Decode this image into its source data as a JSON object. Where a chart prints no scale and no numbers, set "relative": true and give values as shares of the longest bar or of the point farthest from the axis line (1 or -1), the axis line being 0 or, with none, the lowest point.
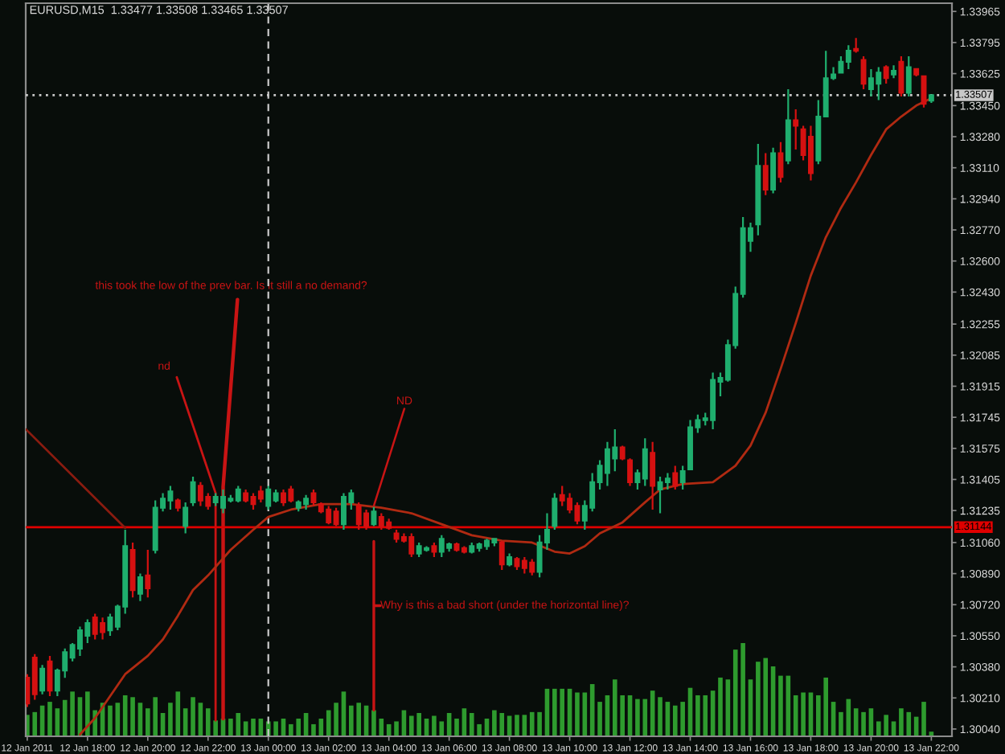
{
  "chart_data": [
    {
      "type": "candlestick",
      "title": "EURUSD,M15  1.33477 1.33508 1.33465 1.33507",
      "x": [
        "2011-01-12T16:00",
        "2011-01-12T16:15",
        "2011-01-12T16:30",
        "2011-01-12T16:45",
        "2011-01-12T17:00",
        "2011-01-12T17:15",
        "2011-01-12T17:30",
        "2011-01-12T17:45",
        "2011-01-12T18:00",
        "2011-01-12T18:15",
        "2011-01-12T18:30",
        "2011-01-12T18:45",
        "2011-01-12T19:00",
        "2011-01-12T19:15",
        "2011-01-12T19:30",
        "2011-01-12T19:45",
        "2011-01-12T20:00",
        "2011-01-12T20:15",
        "2011-01-12T20:30",
        "2011-01-12T20:45",
        "2011-01-12T21:00",
        "2011-01-12T21:15",
        "2011-01-12T21:30",
        "2011-01-12T21:45",
        "2011-01-12T22:00",
        "2011-01-12T22:15",
        "2011-01-12T22:30",
        "2011-01-12T22:45",
        "2011-01-12T23:00",
        "2011-01-12T23:15",
        "2011-01-12T23:30",
        "2011-01-12T23:45",
        "2011-01-13T00:00",
        "2011-01-13T00:15",
        "2011-01-13T00:30",
        "2011-01-13T00:45",
        "2011-01-13T01:00",
        "2011-01-13T01:15",
        "2011-01-13T01:30",
        "2011-01-13T01:45",
        "2011-01-13T02:00",
        "2011-01-13T02:15",
        "2011-01-13T02:30",
        "2011-01-13T02:45",
        "2011-01-13T03:00",
        "2011-01-13T03:15",
        "2011-01-13T03:30",
        "2011-01-13T03:45",
        "2011-01-13T04:00",
        "2011-01-13T04:15",
        "2011-01-13T04:30",
        "2011-01-13T04:45",
        "2011-01-13T05:00",
        "2011-01-13T05:15",
        "2011-01-13T05:30",
        "2011-01-13T05:45",
        "2011-01-13T06:00",
        "2011-01-13T06:15",
        "2011-01-13T06:30",
        "2011-01-13T06:45",
        "2011-01-13T07:00",
        "2011-01-13T07:15",
        "2011-01-13T07:30",
        "2011-01-13T07:45",
        "2011-01-13T08:00",
        "2011-01-13T08:15",
        "2011-01-13T08:30",
        "2011-01-13T08:45",
        "2011-01-13T09:00",
        "2011-01-13T09:15",
        "2011-01-13T09:30",
        "2011-01-13T09:45",
        "2011-01-13T10:00",
        "2011-01-13T10:15",
        "2011-01-13T10:30",
        "2011-01-13T10:45",
        "2011-01-13T11:00",
        "2011-01-13T11:15",
        "2011-01-13T11:30",
        "2011-01-13T11:45",
        "2011-01-13T12:00",
        "2011-01-13T12:15",
        "2011-01-13T12:30",
        "2011-01-13T12:45",
        "2011-01-13T13:00",
        "2011-01-13T13:15",
        "2011-01-13T13:30",
        "2011-01-13T13:45",
        "2011-01-13T14:00",
        "2011-01-13T14:15",
        "2011-01-13T14:30",
        "2011-01-13T14:45",
        "2011-01-13T15:00",
        "2011-01-13T15:15",
        "2011-01-13T15:30",
        "2011-01-13T15:45",
        "2011-01-13T16:00",
        "2011-01-13T16:15",
        "2011-01-13T16:30",
        "2011-01-13T16:45",
        "2011-01-13T17:00",
        "2011-01-13T17:15",
        "2011-01-13T17:30",
        "2011-01-13T17:45",
        "2011-01-13T18:00",
        "2011-01-13T18:15",
        "2011-01-13T18:30",
        "2011-01-13T18:45",
        "2011-01-13T19:00",
        "2011-01-13T19:15",
        "2011-01-13T19:30",
        "2011-01-13T19:45",
        "2011-01-13T20:00",
        "2011-01-13T20:15",
        "2011-01-13T20:30",
        "2011-01-13T20:45",
        "2011-01-13T21:00",
        "2011-01-13T21:15",
        "2011-01-13T21:30",
        "2011-01-13T21:45",
        "2011-01-13T22:00"
      ],
      "ohlc": [
        [
          1.3032,
          1.3034,
          1.3016,
          1.3018
        ],
        [
          1.3043,
          1.3045,
          1.302,
          1.3023
        ],
        [
          1.3025,
          1.3039,
          1.3023,
          1.3037
        ],
        [
          1.3041,
          1.3044,
          1.3022,
          1.3025
        ],
        [
          1.3025,
          1.3037,
          1.3022,
          1.3036
        ],
        [
          1.3036,
          1.3048,
          1.3032,
          1.3046
        ],
        [
          1.3043,
          1.3051,
          1.3041,
          1.305
        ],
        [
          1.3048,
          1.306,
          1.3044,
          1.3058
        ],
        [
          1.3055,
          1.3064,
          1.3051,
          1.3062
        ],
        [
          1.3065,
          1.3067,
          1.3053,
          1.3056
        ],
        [
          1.3062,
          1.3065,
          1.3053,
          1.3057
        ],
        [
          1.3058,
          1.3067,
          1.3055,
          1.3065
        ],
        [
          1.306,
          1.3072,
          1.3058,
          1.3071
        ],
        [
          1.3071,
          1.3113,
          1.3067,
          1.3104
        ],
        [
          1.3102,
          1.3106,
          1.3076,
          1.308
        ],
        [
          1.3078,
          1.3089,
          1.3074,
          1.3087
        ],
        [
          1.3088,
          1.3102,
          1.3076,
          1.3081
        ],
        [
          1.3102,
          1.3129,
          1.31,
          1.3125
        ],
        [
          1.3125,
          1.3133,
          1.3123,
          1.313
        ],
        [
          1.3129,
          1.3137,
          1.3124,
          1.3134
        ],
        [
          1.3129,
          1.313,
          1.3123,
          1.3125
        ],
        [
          1.3115,
          1.3128,
          1.3111,
          1.3125
        ],
        [
          1.3128,
          1.3142,
          1.3126,
          1.3139
        ],
        [
          1.3137,
          1.3139,
          1.3126,
          1.3129
        ],
        [
          1.3131,
          1.3133,
          1.3124,
          1.3126
        ],
        [
          1.3128,
          1.3133,
          1.3126,
          1.3131
        ],
        [
          1.3125,
          1.3135,
          1.3122,
          1.3131
        ],
        [
          1.3129,
          1.3132,
          1.3128,
          1.313
        ],
        [
          1.3129,
          1.3137,
          1.3128,
          1.3135
        ],
        [
          1.3133,
          1.3135,
          1.3128,
          1.3129
        ],
        [
          1.3131,
          1.3133,
          1.3124,
          1.3127
        ],
        [
          1.3134,
          1.3137,
          1.3128,
          1.313
        ],
        [
          1.3126,
          1.3137,
          1.3124,
          1.3135
        ],
        [
          1.3129,
          1.3135,
          1.3128,
          1.3133
        ],
        [
          1.3133,
          1.3135,
          1.3126,
          1.3128
        ],
        [
          1.3135,
          1.3137,
          1.3128,
          1.3129
        ],
        [
          1.3125,
          1.3129,
          1.3123,
          1.3128
        ],
        [
          1.3127,
          1.3132,
          1.3124,
          1.313
        ],
        [
          1.3133,
          1.3135,
          1.3126,
          1.3128
        ],
        [
          1.3127,
          1.3128,
          1.3122,
          1.3123
        ],
        [
          1.3124,
          1.3126,
          1.3116,
          1.3117
        ],
        [
          1.3123,
          1.3125,
          1.3115,
          1.3116
        ],
        [
          1.3116,
          1.3133,
          1.3113,
          1.3131
        ],
        [
          1.3128,
          1.3135,
          1.3124,
          1.3133
        ],
        [
          1.3126,
          1.3128,
          1.3113,
          1.3116
        ],
        [
          1.3122,
          1.3124,
          1.3113,
          1.3115
        ],
        [
          1.3116,
          1.3126,
          1.3115,
          1.3123
        ],
        [
          1.312,
          1.3122,
          1.3113,
          1.3115
        ],
        [
          1.3117,
          1.3119,
          1.3113,
          1.3114
        ],
        [
          1.3111,
          1.3113,
          1.3106,
          1.3108
        ],
        [
          1.3109,
          1.3111,
          1.3106,
          1.3107
        ],
        [
          1.3109,
          1.3111,
          1.3098,
          1.31
        ],
        [
          1.31,
          1.3106,
          1.3098,
          1.3104
        ],
        [
          1.3102,
          1.3104,
          1.3101,
          1.3103
        ],
        [
          1.3104,
          1.3106,
          1.3098,
          1.3101
        ],
        [
          1.3101,
          1.311,
          1.3098,
          1.3108
        ],
        [
          1.3103,
          1.3106,
          1.3101,
          1.3105
        ],
        [
          1.3105,
          1.3106,
          1.3101,
          1.3102
        ],
        [
          1.3103,
          1.3104,
          1.31,
          1.3101
        ],
        [
          1.3101,
          1.3106,
          1.31,
          1.3104
        ],
        [
          1.3103,
          1.3106,
          1.3101,
          1.3105
        ],
        [
          1.3104,
          1.3108,
          1.3102,
          1.3107
        ],
        [
          1.3106,
          1.3108,
          1.3104,
          1.3108
        ],
        [
          1.3106,
          1.3107,
          1.3091,
          1.3094
        ],
        [
          1.3094,
          1.31,
          1.3093,
          1.3098
        ],
        [
          1.3097,
          1.3098,
          1.3091,
          1.3093
        ],
        [
          1.3096,
          1.3098,
          1.3089,
          1.3092
        ],
        [
          1.3095,
          1.3097,
          1.3088,
          1.309
        ],
        [
          1.309,
          1.311,
          1.3087,
          1.3106
        ],
        [
          1.3106,
          1.3122,
          1.3102,
          1.3113
        ],
        [
          1.3115,
          1.3133,
          1.3113,
          1.313
        ],
        [
          1.3132,
          1.3137,
          1.3126,
          1.3129
        ],
        [
          1.313,
          1.3133,
          1.3122,
          1.3124
        ],
        [
          1.3126,
          1.3128,
          1.3116,
          1.3118
        ],
        [
          1.3118,
          1.3129,
          1.3113,
          1.3126
        ],
        [
          1.3125,
          1.3144,
          1.3123,
          1.3139
        ],
        [
          1.3139,
          1.3151,
          1.3135,
          1.3148
        ],
        [
          1.3144,
          1.3161,
          1.3137,
          1.3157
        ],
        [
          1.3152,
          1.3168,
          1.3145,
          1.3158
        ],
        [
          1.3158,
          1.3159,
          1.3151,
          1.3152
        ],
        [
          1.3151,
          1.3152,
          1.3137,
          1.3139
        ],
        [
          1.3139,
          1.3146,
          1.3135,
          1.3144
        ],
        [
          1.3141,
          1.3163,
          1.3137,
          1.3157
        ],
        [
          1.3155,
          1.3161,
          1.3124,
          1.3137
        ],
        [
          1.3135,
          1.3142,
          1.3122,
          1.3139
        ],
        [
          1.3139,
          1.3144,
          1.3135,
          1.3141
        ],
        [
          1.3144,
          1.3148,
          1.3135,
          1.3137
        ],
        [
          1.3139,
          1.3148,
          1.3135,
          1.3145
        ],
        [
          1.3146,
          1.3173,
          1.3146,
          1.3169
        ],
        [
          1.3169,
          1.3176,
          1.3166,
          1.3173
        ],
        [
          1.3173,
          1.3177,
          1.317,
          1.3174
        ],
        [
          1.3173,
          1.3199,
          1.3168,
          1.3195
        ],
        [
          1.3194,
          1.3199,
          1.3186,
          1.3196
        ],
        [
          1.3195,
          1.3217,
          1.3194,
          1.3214
        ],
        [
          1.3214,
          1.3246,
          1.3212,
          1.3242
        ],
        [
          1.3242,
          1.3284,
          1.324,
          1.3278
        ],
        [
          1.3271,
          1.3281,
          1.3265,
          1.3278
        ],
        [
          1.328,
          1.3324,
          1.3274,
          1.3312
        ],
        [
          1.3312,
          1.3319,
          1.3296,
          1.3299
        ],
        [
          1.3299,
          1.3322,
          1.3297,
          1.3319
        ],
        [
          1.3319,
          1.3325,
          1.3303,
          1.3306
        ],
        [
          1.3315,
          1.3354,
          1.3313,
          1.3337
        ],
        [
          1.3337,
          1.3343,
          1.3321,
          1.3334
        ],
        [
          1.3332,
          1.3334,
          1.3315,
          1.3318
        ],
        [
          1.3328,
          1.3334,
          1.3304,
          1.3308
        ],
        [
          1.3315,
          1.3348,
          1.3313,
          1.3339
        ],
        [
          1.3339,
          1.3375,
          1.3339,
          1.336
        ],
        [
          1.336,
          1.3366,
          1.3359,
          1.3362
        ],
        [
          1.3363,
          1.3372,
          1.3363,
          1.3369
        ],
        [
          1.3369,
          1.3378,
          1.3365,
          1.3375
        ],
        [
          1.3376,
          1.3382,
          1.3374,
          1.3375
        ],
        [
          1.337,
          1.3372,
          1.3354,
          1.3357
        ],
        [
          1.3354,
          1.3365,
          1.335,
          1.336
        ],
        [
          1.3357,
          1.3366,
          1.3348,
          1.3363
        ],
        [
          1.3366,
          1.3367,
          1.3357,
          1.336
        ],
        [
          1.3362,
          1.3367,
          1.336,
          1.3364
        ],
        [
          1.3369,
          1.3372,
          1.335,
          1.3352
        ],
        [
          1.3352,
          1.3372,
          1.335,
          1.3366
        ],
        [
          1.3365,
          1.3365,
          1.3361,
          1.3362
        ],
        [
          1.3361,
          1.3361,
          1.3344,
          1.3346
        ],
        [
          1.33477,
          1.33508,
          1.33465,
          1.33507
        ]
      ],
      "colors": [
        "#d51111",
        "#d51111",
        "#1fae6e",
        "#d51111",
        "#1fae6e",
        "#1fae6e",
        "#1fae6e",
        "#1fae6e",
        "#1fae6e",
        "#d51111",
        "#d51111",
        "#1fae6e",
        "#1fae6e",
        "#1fae6e",
        "#d51111",
        "#1fae6e",
        "#d51111",
        "#1fae6e",
        "#1fae6e",
        "#1fae6e",
        "#d51111",
        "#1fae6e",
        "#1fae6e",
        "#d51111",
        "#d51111",
        "#1fae6e",
        "#1fae6e",
        "#1fae6e",
        "#1fae6e",
        "#d51111",
        "#d51111",
        "#d51111",
        "#1fae6e",
        "#1fae6e",
        "#d51111",
        "#d51111",
        "#1fae6e",
        "#1fae6e",
        "#d51111",
        "#d51111",
        "#d51111",
        "#d51111",
        "#1fae6e",
        "#1fae6e",
        "#d51111",
        "#d51111",
        "#1fae6e",
        "#d51111",
        "#d51111",
        "#d51111",
        "#d51111",
        "#d51111",
        "#1fae6e",
        "#1fae6e",
        "#d51111",
        "#1fae6e",
        "#1fae6e",
        "#d51111",
        "#d51111",
        "#1fae6e",
        "#1fae6e",
        "#1fae6e",
        "#1fae6e",
        "#d51111",
        "#1fae6e",
        "#d51111",
        "#d51111",
        "#d51111",
        "#1fae6e",
        "#1fae6e",
        "#1fae6e",
        "#d51111",
        "#d51111",
        "#d51111",
        "#1fae6e",
        "#1fae6e",
        "#1fae6e",
        "#1fae6e",
        "#1fae6e",
        "#d51111",
        "#d51111",
        "#1fae6e",
        "#1fae6e",
        "#d51111",
        "#1fae6e",
        "#1fae6e",
        "#d51111",
        "#1fae6e",
        "#1fae6e",
        "#1fae6e",
        "#1fae6e",
        "#1fae6e",
        "#1fae6e",
        "#1fae6e",
        "#1fae6e",
        "#1fae6e",
        "#1fae6e",
        "#1fae6e",
        "#d51111",
        "#1fae6e",
        "#d51111",
        "#1fae6e",
        "#d51111",
        "#d51111",
        "#d51111",
        "#1fae6e",
        "#1fae6e",
        "#1fae6e",
        "#1fae6e",
        "#1fae6e",
        "#d51111",
        "#d51111",
        "#1fae6e",
        "#1fae6e",
        "#d51111",
        "#1fae6e",
        "#d51111",
        "#1fae6e",
        "#d51111",
        "#d51111",
        "#1fae6e"
      ],
      "series": [
        {
          "type": "line",
          "color": "#b02a12",
          "x": [
            "2011-01-12T17:45",
            "2011-01-12T18:15",
            "2011-01-12T19:15",
            "2011-01-12T20:00",
            "2011-01-12T20:30",
            "2011-01-12T21:00",
            "2011-01-12T21:30",
            "2011-01-12T22:00",
            "2011-01-12T22:45",
            "2011-01-12T23:30",
            "2011-01-13T00:00",
            "2011-01-13T00:45",
            "2011-01-13T01:45",
            "2011-01-13T02:45",
            "2011-01-13T03:45",
            "2011-01-13T04:45",
            "2011-01-13T05:45",
            "2011-01-13T06:45",
            "2011-01-13T07:45",
            "2011-01-13T08:45",
            "2011-01-13T09:30",
            "2011-01-13T10:00",
            "2011-01-13T10:30",
            "2011-01-13T11:00",
            "2011-01-13T11:45",
            "2011-01-13T12:30",
            "2011-01-13T13:00",
            "2011-01-13T13:45",
            "2011-01-13T14:45",
            "2011-01-13T15:30",
            "2011-01-13T16:00",
            "2011-01-13T16:30",
            "2011-01-13T17:00",
            "2011-01-13T17:30",
            "2011-01-13T18:00",
            "2011-01-13T18:30",
            "2011-01-13T19:00",
            "2011-01-13T19:30",
            "2011-01-13T20:00",
            "2011-01-13T20:30",
            "2011-01-13T21:00",
            "2011-01-13T21:30",
            "2011-01-13T22:00"
          ],
          "values": [
            1.3001,
            1.301,
            1.3034,
            1.3044,
            1.3053,
            1.3066,
            1.308,
            1.3088,
            1.3102,
            1.3113,
            1.312,
            1.3124,
            1.3127,
            1.3127,
            1.3125,
            1.3122,
            1.3116,
            1.311,
            1.3107,
            1.3106,
            1.3101,
            1.31,
            1.3104,
            1.3111,
            1.3117,
            1.3128,
            1.3135,
            1.3138,
            1.3139,
            1.3148,
            1.3159,
            1.3177,
            1.3201,
            1.3226,
            1.3252,
            1.3273,
            1.3289,
            1.3303,
            1.3318,
            1.3332,
            1.3339,
            1.3345,
            1.3349
          ]
        },
        {
          "type": "line",
          "color": "#8a1c10",
          "x": [
            "2011-01-12T15:57",
            "2011-01-12T19:15"
          ],
          "values": [
            1.3168,
            1.3114
          ]
        }
      ],
      "xlim": [
        "2011-01-12T15:57",
        "2011-01-13T22:41"
      ],
      "ylim": [
        1.3,
        1.3401
      ],
      "xticks": [
        {
          "value": "2011-01-12T16:00",
          "label": "12 Jan 2011"
        },
        {
          "value": "2011-01-12T18:00",
          "label": "12 Jan 18:00"
        },
        {
          "value": "2011-01-12T20:00",
          "label": "12 Jan 20:00"
        },
        {
          "value": "2011-01-12T22:00",
          "label": "12 Jan 22:00"
        },
        {
          "value": "2011-01-13T00:00",
          "label": "13 Jan 00:00"
        },
        {
          "value": "2011-01-13T02:00",
          "label": "13 Jan 02:00"
        },
        {
          "value": "2011-01-13T04:00",
          "label": "13 Jan 04:00"
        },
        {
          "value": "2011-01-13T06:00",
          "label": "13 Jan 06:00"
        },
        {
          "value": "2011-01-13T08:00",
          "label": "13 Jan 08:00"
        },
        {
          "value": "2011-01-13T10:00",
          "label": "13 Jan 10:00"
        },
        {
          "value": "2011-01-13T12:00",
          "label": "13 Jan 12:00"
        },
        {
          "value": "2011-01-13T14:00",
          "label": "13 Jan 14:00"
        },
        {
          "value": "2011-01-13T16:00",
          "label": "13 Jan 16:00"
        },
        {
          "value": "2011-01-13T18:00",
          "label": "13 Jan 18:00"
        },
        {
          "value": "2011-01-13T20:00",
          "label": "13 Jan 20:00"
        },
        {
          "value": "2011-01-13T22:00",
          "label": "13 Jan 22:00"
        }
      ],
      "yticks": [
        1.33965,
        1.33795,
        1.33625,
        {
          "value": 1.3345,
          "label": "1.33450"
        },
        {
          "value": 1.3328,
          "label": "1.33280"
        },
        {
          "value": 1.3311,
          "label": "1.33110"
        },
        {
          "value": 1.3294,
          "label": "1.32940"
        },
        {
          "value": 1.3277,
          "label": "1.32770"
        },
        {
          "value": 1.326,
          "label": "1.32600"
        },
        {
          "value": 1.3243,
          "label": "1.32430"
        },
        1.32255,
        1.32085,
        1.31915,
        1.31745,
        1.31575,
        1.31405,
        1.31235,
        {
          "value": 1.3106,
          "label": "1.31060"
        },
        {
          "value": 1.3089,
          "label": "1.30890"
        },
        {
          "value": 1.3072,
          "label": "1.30720"
        },
        {
          "value": 1.3055,
          "label": "1.30550"
        },
        {
          "value": 1.3038,
          "label": "1.30380"
        },
        {
          "value": 1.3021,
          "label": "1.30210"
        },
        {
          "value": 1.3004,
          "label": "1.30040"
        }
      ],
      "ref_lines": [
        {
          "axis": "y",
          "value": 1.31144,
          "label": "1.31144",
          "color": "#e00000",
          "line_style": "solid"
        },
        {
          "axis": "y",
          "value": 1.33507,
          "label": "1.33507",
          "color": "#c8c8c8",
          "line_style": "dotted"
        },
        {
          "axis": "x",
          "value": "2011-01-13T00:00",
          "color": "#c8c8c8",
          "line_style": "dashed"
        }
      ],
      "annotations": [
        {
          "text": "ND",
          "x": "2011-01-13T03:30",
          "y": 1.3126
        }
      ]
    },
    {
      "type": "bar",
      "relative": true,
      "color": "#2e9b2e",
      "xlim": [
        "2011-01-12T15:57",
        "2011-01-13T22:41"
      ],
      "x": [
        "2011-01-12T16:00",
        "2011-01-12T16:15",
        "2011-01-12T16:30",
        "2011-01-12T16:45",
        "2011-01-12T17:00",
        "2011-01-12T17:15",
        "2011-01-12T17:30",
        "2011-01-12T17:45",
        "2011-01-12T18:00",
        "2011-01-12T18:15",
        "2011-01-12T18:30",
        "2011-01-12T18:45",
        "2011-01-12T19:00",
        "2011-01-12T19:15",
        "2011-01-12T19:30",
        "2011-01-12T19:45",
        "2011-01-12T20:00",
        "2011-01-12T20:15",
        "2011-01-12T20:30",
        "2011-01-12T20:45",
        "2011-01-12T21:00",
        "2011-01-12T21:15",
        "2011-01-12T21:30",
        "2011-01-12T21:45",
        "2011-01-12T22:00",
        "2011-01-12T22:15",
        "2011-01-12T22:30",
        "2011-01-12T22:45",
        "2011-01-12T23:00",
        "2011-01-12T23:15",
        "2011-01-12T23:30",
        "2011-01-12T23:45",
        "2011-01-13T00:00",
        "2011-01-13T00:15",
        "2011-01-13T00:30",
        "2011-01-13T00:45",
        "2011-01-13T01:00",
        "2011-01-13T01:15",
        "2011-01-13T01:30",
        "2011-01-13T01:45",
        "2011-01-13T02:00",
        "2011-01-13T02:15",
        "2011-01-13T02:30",
        "2011-01-13T02:45",
        "2011-01-13T03:00",
        "2011-01-13T03:15",
        "2011-01-13T03:30",
        "2011-01-13T03:45",
        "2011-01-13T04:00",
        "2011-01-13T04:15",
        "2011-01-13T04:30",
        "2011-01-13T04:45",
        "2011-01-13T05:00",
        "2011-01-13T05:15",
        "2011-01-13T05:30",
        "2011-01-13T05:45",
        "2011-01-13T06:00",
        "2011-01-13T06:15",
        "2011-01-13T06:30",
        "2011-01-13T06:45",
        "2011-01-13T07:00",
        "2011-01-13T07:15",
        "2011-01-13T07:30",
        "2011-01-13T07:45",
        "2011-01-13T08:00",
        "2011-01-13T08:15",
        "2011-01-13T08:30",
        "2011-01-13T08:45",
        "2011-01-13T09:00",
        "2011-01-13T09:15",
        "2011-01-13T09:30",
        "2011-01-13T09:45",
        "2011-01-13T10:00",
        "2011-01-13T10:15",
        "2011-01-13T10:30",
        "2011-01-13T10:45",
        "2011-01-13T11:00",
        "2011-01-13T11:15",
        "2011-01-13T11:30",
        "2011-01-13T11:45",
        "2011-01-13T12:00",
        "2011-01-13T12:15",
        "2011-01-13T12:30",
        "2011-01-13T12:45",
        "2011-01-13T13:00",
        "2011-01-13T13:15",
        "2011-01-13T13:30",
        "2011-01-13T13:45",
        "2011-01-13T14:00",
        "2011-01-13T14:15",
        "2011-01-13T14:30",
        "2011-01-13T14:45",
        "2011-01-13T15:00",
        "2011-01-13T15:15",
        "2011-01-13T15:30",
        "2011-01-13T15:45",
        "2011-01-13T16:00",
        "2011-01-13T16:15",
        "2011-01-13T16:30",
        "2011-01-13T16:45",
        "2011-01-13T17:00",
        "2011-01-13T17:15",
        "2011-01-13T17:30",
        "2011-01-13T17:45",
        "2011-01-13T18:00",
        "2011-01-13T18:15",
        "2011-01-13T18:30",
        "2011-01-13T18:45",
        "2011-01-13T19:00",
        "2011-01-13T19:15",
        "2011-01-13T19:30",
        "2011-01-13T19:45",
        "2011-01-13T20:00",
        "2011-01-13T20:15",
        "2011-01-13T20:30",
        "2011-01-13T20:45",
        "2011-01-13T21:00",
        "2011-01-13T21:15",
        "2011-01-13T21:30",
        "2011-01-13T21:45",
        "2011-01-13T22:00"
      ],
      "values": [
        0.23,
        0.26,
        0.33,
        0.37,
        0.3,
        0.39,
        0.48,
        0.42,
        0.48,
        0.28,
        0.36,
        0.33,
        0.36,
        0.44,
        0.42,
        0.36,
        0.3,
        0.42,
        0.25,
        0.36,
        0.48,
        0.3,
        0.42,
        0.36,
        0.3,
        0.17,
        0.19,
        0.19,
        0.25,
        0.16,
        0.19,
        0.19,
        0.16,
        0.16,
        0.19,
        0.13,
        0.19,
        0.25,
        0.13,
        0.19,
        0.28,
        0.36,
        0.48,
        0.33,
        0.36,
        0.33,
        0.28,
        0.19,
        0.13,
        0.16,
        0.28,
        0.22,
        0.25,
        0.19,
        0.22,
        0.16,
        0.25,
        0.19,
        0.3,
        0.25,
        0.13,
        0.19,
        0.28,
        0.25,
        0.22,
        0.23,
        0.23,
        0.26,
        0.26,
        0.51,
        0.51,
        0.51,
        0.51,
        0.47,
        0.47,
        0.56,
        0.37,
        0.44,
        0.61,
        0.44,
        0.44,
        0.4,
        0.4,
        0.49,
        0.42,
        0.37,
        0.33,
        0.37,
        0.52,
        0.44,
        0.44,
        0.49,
        0.63,
        0.61,
        0.93,
        1,
        0.61,
        0.8,
        0.84,
        0.75,
        0.65,
        0.65,
        0.44,
        0.47,
        0.47,
        0.44,
        0.63,
        0.37,
        0.26,
        0.4,
        0.3,
        0.26,
        0.3,
        0.16,
        0.23,
        0.16,
        0.3,
        0.26,
        0.21,
        0.37,
        0.05
      ],
      "annotations": [
        {
          "text": "this took the low of the prev bar. Is it still a no demand?",
          "x": "2011-01-12T22:30",
          "y": 0.19
        },
        {
          "text": "nd",
          "x": "2011-01-12T22:15",
          "y": 0.17
        },
        {
          "text": "Why is this a bad short (under the horizontal line)?",
          "x": "2011-01-13T03:30",
          "y": 0.28
        }
      ]
    }
  ]
}
